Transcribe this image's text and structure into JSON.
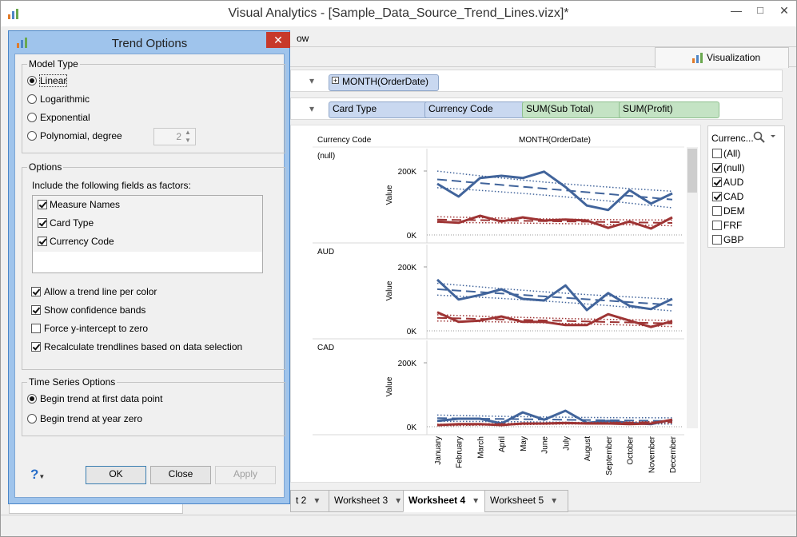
{
  "window": {
    "title": "Visual Analytics - [Sample_Data_Source_Trend_Lines.vizx]*",
    "menu_partial": "ow",
    "viz_tab": "Visualization"
  },
  "shelves": {
    "columns": [
      {
        "label": "MONTH(OrderDate)",
        "kind": "dimension"
      }
    ],
    "rows": [
      {
        "label": "Card Type",
        "kind": "dimension"
      },
      {
        "label": "Currency Code",
        "kind": "dimension"
      },
      {
        "label": "SUM(Sub Total)",
        "kind": "measure"
      },
      {
        "label": "SUM(Profit)",
        "kind": "measure"
      }
    ]
  },
  "chart_data": {
    "type": "line",
    "row_header": "Currency Code",
    "column_header": "MONTH(OrderDate)",
    "y_label": "Value",
    "categories": [
      "January",
      "February",
      "March",
      "April",
      "May",
      "June",
      "July",
      "August",
      "September",
      "October",
      "November",
      "December"
    ],
    "ylim": [
      -25000,
      275000
    ],
    "yticks": [
      {
        "value": 0,
        "label": "0K"
      },
      {
        "value": 200000,
        "label": "200K"
      }
    ],
    "trend_lines": true,
    "confidence_bands": true,
    "panels": [
      {
        "label": "(null)",
        "series": [
          {
            "color": "#41649b",
            "values": [
              160000,
              120000,
              178000,
              185000,
              178000,
              198000,
              150000,
              92000,
              78000,
              140000,
              98000,
              130000
            ]
          },
          {
            "color": "#9e3434",
            "values": [
              42000,
              38000,
              60000,
              42000,
              55000,
              45000,
              48000,
              45000,
              22000,
              42000,
              20000,
              55000
            ]
          }
        ]
      },
      {
        "label": "AUD",
        "series": [
          {
            "color": "#41649b",
            "values": [
              160000,
              98000,
              112000,
              130000,
              100000,
              95000,
              142000,
              65000,
              118000,
              78000,
              68000,
              100000
            ]
          },
          {
            "color": "#9e3434",
            "values": [
              58000,
              28000,
              32000,
              45000,
              28000,
              28000,
              18000,
              18000,
              52000,
              32000,
              12000,
              30000
            ]
          }
        ]
      },
      {
        "label": "CAD",
        "series": [
          {
            "color": "#41649b",
            "values": [
              18000,
              25000,
              25000,
              10000,
              45000,
              22000,
              50000,
              12000,
              18000,
              12000,
              8000,
              22000
            ]
          },
          {
            "color": "#9e3434",
            "values": [
              5000,
              8000,
              8000,
              5000,
              10000,
              10000,
              12000,
              10000,
              10000,
              8000,
              10000,
              22000
            ]
          }
        ]
      }
    ]
  },
  "filter": {
    "title": "Currenc...",
    "items": [
      {
        "label": "(All)",
        "checked": false
      },
      {
        "label": "(null)",
        "checked": true
      },
      {
        "label": "AUD",
        "checked": true
      },
      {
        "label": "CAD",
        "checked": true
      },
      {
        "label": "DEM",
        "checked": false
      },
      {
        "label": "FRF",
        "checked": false
      },
      {
        "label": "GBP",
        "checked": false
      }
    ]
  },
  "dialog": {
    "title": "Trend Options",
    "model_type": {
      "legend": "Model Type",
      "options": [
        "Linear",
        "Logarithmic",
        "Exponential",
        "Polynomial, degree"
      ],
      "selected": 0,
      "degree": 2
    },
    "options": {
      "legend": "Options",
      "factors_label": "Include the following fields as factors:",
      "factors": [
        {
          "label": "Measure Names",
          "checked": true
        },
        {
          "label": "Card Type",
          "checked": true
        },
        {
          "label": "Currency Code",
          "checked": true
        }
      ],
      "checks": [
        {
          "label": "Allow a trend line per color",
          "checked": true
        },
        {
          "label": "Show confidence bands",
          "checked": true
        },
        {
          "label": "Force y-intercept to zero",
          "checked": false
        },
        {
          "label": "Recalculate trendlines based on data selection",
          "checked": true
        }
      ]
    },
    "time_series": {
      "legend": "Time Series Options",
      "options": [
        "Begin trend at first data point",
        "Begin trend at year zero"
      ],
      "selected": 0
    },
    "buttons": [
      {
        "label": "OK",
        "enabled": true
      },
      {
        "label": "Close",
        "enabled": true
      },
      {
        "label": "Apply",
        "enabled": false
      }
    ],
    "help": "?"
  },
  "tabs": {
    "items": [
      "t 2",
      "Worksheet 3",
      "Worksheet 4",
      "Worksheet 5"
    ],
    "active": 2
  }
}
